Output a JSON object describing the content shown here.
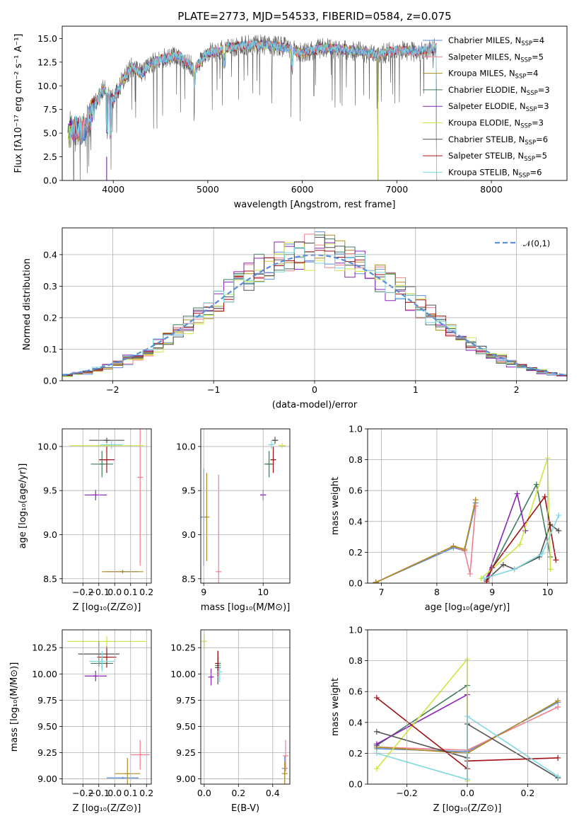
{
  "colors": [
    "#5b8fd9",
    "#ef7f8f",
    "#b08a1e",
    "#3f7a5b",
    "#8b22b8",
    "#cfe640",
    "#505050",
    "#a01015",
    "#7fd8e0"
  ],
  "chart_data": [
    {
      "type": "line",
      "title": "PLATE=2773, MJD=54533, FIBERID=0584, z=0.075",
      "xlabel": "wavelength [Angstrom, rest frame]",
      "ylabel": "Flux [fλ10⁻¹⁷ erg cm⁻² s⁻¹ A⁻¹]",
      "xlim": [
        3460,
        8800
      ],
      "ylim": [
        0,
        16.3
      ],
      "xticks": [
        "4000",
        "5000",
        "6000",
        "7000",
        "8000"
      ],
      "yticks": [
        "0.0",
        "2.5",
        "5.0",
        "7.5",
        "10.0",
        "12.5",
        "15.0"
      ],
      "grid": false,
      "legend": "top-right",
      "legend_entries": [
        "Chabrier MILES, N_SSP=4",
        "Salpeter MILES, N_SSP=5",
        "Kroupa MILES, N_SSP=4",
        "Chabrier ELODIE, N_SSP=3",
        "Salpeter ELODIE, N_SSP=3",
        "Kroupa ELODIE, N_SSP=3",
        "Chabrier STELIB, N_SSP=6",
        "Salpeter STELIB, N_SSP=5",
        "Kroupa STELIB, N_SSP=6"
      ],
      "envelope": {
        "x": [
          3550,
          3700,
          3800,
          3900,
          4000,
          4100,
          4200,
          4300,
          4400,
          4500,
          4700,
          4860,
          5000,
          5100,
          5200,
          5400,
          5600,
          5800,
          6000,
          6200,
          6400,
          6600,
          6800,
          7000,
          7200,
          7400
        ],
        "y": [
          5.2,
          5.5,
          7.8,
          9.8,
          8.5,
          10.6,
          12.0,
          11.2,
          12.4,
          12.8,
          13.2,
          11.8,
          13.5,
          13.6,
          14.0,
          14.3,
          14.3,
          14.1,
          13.4,
          14.0,
          13.9,
          13.6,
          13.3,
          13.8,
          13.6,
          14.0
        ]
      }
    },
    {
      "type": "line",
      "xlabel": "(data-model)/error",
      "ylabel": "Normed distribution",
      "xlim": [
        -2.5,
        2.5
      ],
      "ylim": [
        0,
        0.485
      ],
      "xticks": [
        "−2",
        "−1",
        "0",
        "1",
        "2"
      ],
      "yticks": [
        "0.0",
        "0.1",
        "0.2",
        "0.3",
        "0.4"
      ],
      "grid": true,
      "legend": "top-right",
      "reference": {
        "name": "𝒩(0,1)",
        "mu": 0,
        "sigma": 1
      },
      "hist_bin_width": 0.1
    },
    {
      "type": "scatter",
      "xlabel": "Z [log₁₀(Z/Z⊙)]",
      "ylabel": "age  [log₁₀(age/yr)]",
      "xlim": [
        -0.33,
        0.23
      ],
      "ylim": [
        8.45,
        10.2
      ],
      "xticks": [
        "−0.2",
        "−0.1",
        "0.0",
        "0.1",
        "0.2"
      ],
      "yticks": [
        "8.5",
        "9.0",
        "9.5",
        "10.0"
      ],
      "grid": true,
      "points": [
        {
          "x": 0.05,
          "y": 8.58,
          "xerr": 0.1,
          "yerr": 0.02
        },
        {
          "x": 0.16,
          "y": 9.65,
          "xerr": 0.005,
          "yerr": 1.0
        },
        {
          "x": 0.05,
          "y": 8.58,
          "xerr": 0.13,
          "yerr": 0.02
        },
        {
          "x": -0.08,
          "y": 9.8,
          "xerr": 0.07,
          "yerr": 0.15
        },
        {
          "x": -0.12,
          "y": 9.45,
          "xerr": 0.07,
          "yerr": 0.06
        },
        {
          "x": -0.05,
          "y": 10.01,
          "xerr": 0.23,
          "yerr": 0.03
        },
        {
          "x": -0.05,
          "y": 10.07,
          "xerr": 0.11,
          "yerr": 0.03
        },
        {
          "x": -0.05,
          "y": 9.85,
          "xerr": 0.05,
          "yerr": 0.15
        },
        {
          "x": -0.02,
          "y": 10.02,
          "xerr": 0.07,
          "yerr": 0.05
        }
      ]
    },
    {
      "type": "scatter",
      "xlabel": "mass [log₁₀(M/M⊙)]",
      "xlim": [
        8.95,
        10.45
      ],
      "ylim": [
        8.45,
        10.2
      ],
      "xticks": [
        "9",
        "10"
      ],
      "yticks": [
        "8.5",
        "9.0",
        "9.5",
        "10.0"
      ],
      "grid": true,
      "points": [
        {
          "x": 9.0,
          "y": 9.2,
          "xerr": 0.0,
          "yerr": 0.55
        },
        {
          "x": 9.25,
          "y": 8.58,
          "xerr": 0.0,
          "yerr": 1.1
        },
        {
          "x": 9.05,
          "y": 9.2,
          "xerr": 0.0,
          "yerr": 0.5
        },
        {
          "x": 10.1,
          "y": 9.8,
          "xerr": 0.08,
          "yerr": 0.15
        },
        {
          "x": 10.0,
          "y": 9.45,
          "xerr": 0.05,
          "yerr": 0.06
        },
        {
          "x": 10.32,
          "y": 10.01,
          "xerr": 0.06,
          "yerr": 0.03
        },
        {
          "x": 10.2,
          "y": 10.07,
          "xerr": 0.05,
          "yerr": 0.04
        },
        {
          "x": 10.17,
          "y": 9.85,
          "xerr": 0.04,
          "yerr": 0.15
        },
        {
          "x": 10.14,
          "y": 10.02,
          "xerr": 0.05,
          "yerr": 0.05
        }
      ]
    },
    {
      "type": "line",
      "xlabel": "age  [log₁₀(age/yr)]",
      "ylabel": "mass weight",
      "xlim": [
        6.75,
        10.35
      ],
      "ylim": [
        0,
        1
      ],
      "xticks": [
        "7",
        "8",
        "9",
        "10"
      ],
      "yticks": [
        "0.0",
        "0.2",
        "0.4",
        "0.6",
        "0.8",
        "1.0"
      ],
      "grid": true,
      "series": [
        {
          "x": [
            6.9,
            8.3,
            8.5,
            8.7
          ],
          "y": [
            0.005,
            0.23,
            0.21,
            0.52
          ]
        },
        {
          "x": [
            6.9,
            8.3,
            8.5,
            8.6,
            8.7
          ],
          "y": [
            0.005,
            0.24,
            0.21,
            0.06,
            0.5
          ]
        },
        {
          "x": [
            6.9,
            8.3,
            8.5,
            8.7
          ],
          "y": [
            0.005,
            0.24,
            0.22,
            0.54
          ]
        },
        {
          "x": [
            8.9,
            9.8,
            10.05
          ],
          "y": [
            0.03,
            0.64,
            0.17
          ]
        },
        {
          "x": [
            8.9,
            9.45,
            9.6
          ],
          "y": [
            0.03,
            0.58,
            0.34
          ]
        },
        {
          "x": [
            8.8,
            9.5,
            10.0,
            10.05
          ],
          "y": [
            0.03,
            0.25,
            0.81,
            0.09
          ]
        },
        {
          "x": [
            8.9,
            9.2,
            9.4,
            9.85,
            10.05,
            10.2
          ],
          "y": [
            0.02,
            0.12,
            0.09,
            0.17,
            0.38,
            0.34
          ]
        },
        {
          "x": [
            8.9,
            9.0,
            9.95,
            10.15
          ],
          "y": [
            0.01,
            0.1,
            0.56,
            0.15
          ]
        },
        {
          "x": [
            8.85,
            9.4,
            9.9,
            10.2
          ],
          "y": [
            0.03,
            0.09,
            0.19,
            0.44
          ]
        }
      ]
    },
    {
      "type": "scatter",
      "xlabel": "Z [log₁₀(Z/Z⊙)]",
      "ylabel": "mass [log₁₀(M/M⊙)]",
      "xlim": [
        -0.33,
        0.23
      ],
      "ylim": [
        8.95,
        10.42
      ],
      "xticks": [
        "−0.2",
        "−0.1",
        "0.0",
        "0.1",
        "0.2"
      ],
      "yticks": [
        "9.00",
        "9.25",
        "9.50",
        "9.75",
        "10.00",
        "10.25"
      ],
      "grid": true,
      "points": [
        {
          "x": 0.05,
          "y": 9.01,
          "xerr": 0.1,
          "yerr": 0.01
        },
        {
          "x": 0.16,
          "y": 9.23,
          "xerr": 0.06,
          "yerr": 0.14
        },
        {
          "x": 0.08,
          "y": 9.05,
          "xerr": 0.08,
          "yerr": 0.15
        },
        {
          "x": -0.08,
          "y": 10.1,
          "xerr": 0.07,
          "yerr": 0.05
        },
        {
          "x": -0.12,
          "y": 9.98,
          "xerr": 0.07,
          "yerr": 0.05
        },
        {
          "x": -0.05,
          "y": 10.31,
          "xerr": 0.25,
          "yerr": 0.05
        },
        {
          "x": -0.1,
          "y": 10.19,
          "xerr": 0.13,
          "yerr": 0.12
        },
        {
          "x": -0.05,
          "y": 10.16,
          "xerr": 0.06,
          "yerr": 0.1
        },
        {
          "x": -0.08,
          "y": 10.12,
          "xerr": 0.08,
          "yerr": 0.1
        }
      ]
    },
    {
      "type": "scatter",
      "xlabel": "E(B-V)",
      "xlim": [
        -0.02,
        0.5
      ],
      "ylim": [
        8.95,
        10.42
      ],
      "xticks": [
        "0.0",
        "0.2",
        "0.4"
      ],
      "yticks": [
        "9.00",
        "9.25",
        "9.50",
        "9.75",
        "10.00",
        "10.25"
      ],
      "grid": true,
      "points": [
        {
          "x": 0.47,
          "y": 9.1,
          "xerr": 0.0,
          "yerr": 0.12
        },
        {
          "x": 0.475,
          "y": 9.22,
          "xerr": 0.0,
          "yerr": 0.15
        },
        {
          "x": 0.47,
          "y": 9.05,
          "xerr": 0.0,
          "yerr": 0.12
        },
        {
          "x": 0.08,
          "y": 10.08,
          "xerr": 0.0,
          "yerr": 0.08
        },
        {
          "x": 0.04,
          "y": 9.97,
          "xerr": 0.0,
          "yerr": 0.08
        },
        {
          "x": 0.0,
          "y": 10.31,
          "xerr": 0.0,
          "yerr": 0.07
        },
        {
          "x": 0.08,
          "y": 10.06,
          "xerr": 0.0,
          "yerr": 0.16
        },
        {
          "x": 0.08,
          "y": 10.1,
          "xerr": 0.0,
          "yerr": 0.12
        },
        {
          "x": 0.09,
          "y": 10.02,
          "xerr": 0.0,
          "yerr": 0.1
        }
      ]
    },
    {
      "type": "line",
      "xlabel": "Z [log₁₀(Z/Z⊙)]",
      "ylabel": "mass weight",
      "xlim": [
        -0.33,
        0.33
      ],
      "ylim": [
        0,
        1
      ],
      "xticks": [
        "−0.2",
        "0.0",
        "0.2"
      ],
      "yticks": [
        "0.0",
        "0.2",
        "0.4",
        "0.6",
        "0.8",
        "1.0"
      ],
      "grid": true,
      "series": [
        {
          "x": [
            -0.3,
            0.0,
            0.3
          ],
          "y": [
            0.23,
            0.21,
            0.53
          ]
        },
        {
          "x": [
            -0.3,
            0.0,
            0.3
          ],
          "y": [
            0.24,
            0.22,
            0.5
          ]
        },
        {
          "x": [
            -0.3,
            0.0,
            0.3
          ],
          "y": [
            0.24,
            0.2,
            0.54
          ]
        },
        {
          "x": [
            -0.3,
            0.0
          ],
          "y": [
            0.25,
            0.64
          ]
        },
        {
          "x": [
            -0.3,
            0.0,
            0.0
          ],
          "y": [
            0.26,
            0.58,
            0.03
          ]
        },
        {
          "x": [
            -0.3,
            0.0,
            0.0
          ],
          "y": [
            0.1,
            0.81,
            0.02
          ]
        },
        {
          "x": [
            -0.3,
            0.0,
            0.0,
            0.3
          ],
          "y": [
            0.34,
            0.17,
            0.39,
            0.04
          ]
        },
        {
          "x": [
            -0.3,
            0.0,
            0.0,
            0.3
          ],
          "y": [
            0.56,
            0.1,
            0.15,
            0.17
          ]
        },
        {
          "x": [
            -0.3,
            0.0,
            0.0,
            0.3
          ],
          "y": [
            0.2,
            0.03,
            0.44,
            0.05
          ]
        }
      ]
    }
  ]
}
